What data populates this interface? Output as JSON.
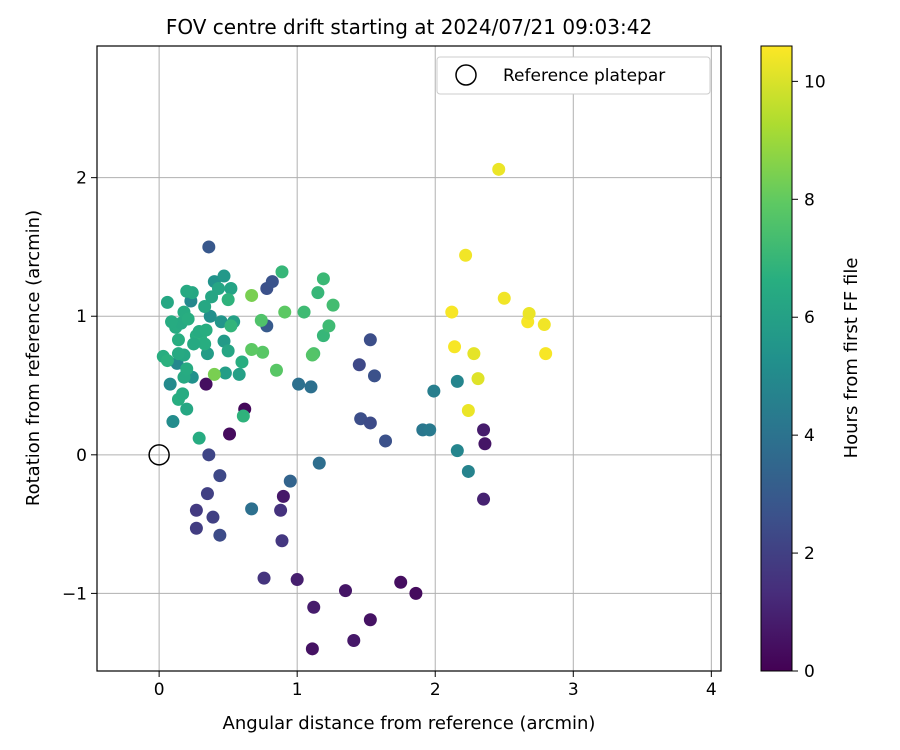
{
  "chart_data": {
    "type": "scatter",
    "title": "FOV centre drift starting at 2024/07/21 09:03:42",
    "xlabel": "Angular distance from reference (arcmin)",
    "ylabel": "Rotation from reference (arcmin)",
    "xlim": [
      -0.45,
      4.07
    ],
    "ylim": [
      -1.56,
      2.95
    ],
    "xticks": [
      0,
      1,
      2,
      3,
      4
    ],
    "yticks": [
      -1,
      0,
      1,
      2
    ],
    "ytick_labels": [
      "−1",
      "0",
      "1",
      "2"
    ],
    "grid": true,
    "legend": {
      "location": "top-right",
      "entries": [
        "Reference platepar"
      ]
    },
    "reference_point": {
      "x": 0.0,
      "y": 0.0,
      "label": "Reference platepar"
    },
    "colorbar": {
      "label": "Hours from first FF file",
      "range": [
        0,
        10.6
      ],
      "ticks": [
        0,
        2,
        4,
        6,
        8,
        10
      ],
      "colormap": "viridis"
    },
    "series": [
      {
        "marker": "filled-circle",
        "columns": [
          "x",
          "y",
          "hours"
        ],
        "points": [
          [
            0.34,
            0.51,
            0.4
          ],
          [
            0.62,
            0.33,
            0.2
          ],
          [
            0.51,
            0.15,
            0.3
          ],
          [
            0.9,
            -0.3,
            0.7
          ],
          [
            1.12,
            -1.1,
            0.8
          ],
          [
            1.11,
            -1.4,
            0.5
          ],
          [
            1.35,
            -0.98,
            0.6
          ],
          [
            1.41,
            -1.34,
            0.7
          ],
          [
            1.53,
            -1.19,
            0.5
          ],
          [
            1.75,
            -0.92,
            0.4
          ],
          [
            1.86,
            -1.0,
            0.3
          ],
          [
            1.0,
            -0.9,
            0.9
          ],
          [
            2.35,
            0.18,
            0.8
          ],
          [
            2.36,
            0.08,
            0.6
          ],
          [
            2.35,
            -0.32,
            1.0
          ],
          [
            0.76,
            -0.89,
            1.6
          ],
          [
            0.88,
            -0.4,
            1.5
          ],
          [
            0.89,
            -0.62,
            1.7
          ],
          [
            0.27,
            -0.4,
            1.8
          ],
          [
            0.27,
            -0.53,
            1.9
          ],
          [
            0.35,
            -0.28,
            2.0
          ],
          [
            0.39,
            -0.45,
            2.0
          ],
          [
            0.36,
            0.0,
            2.2
          ],
          [
            0.44,
            -0.15,
            2.3
          ],
          [
            0.44,
            -0.58,
            2.4
          ],
          [
            1.45,
            0.65,
            2.3
          ],
          [
            1.46,
            0.26,
            2.5
          ],
          [
            1.53,
            0.83,
            2.5
          ],
          [
            1.53,
            0.23,
            2.4
          ],
          [
            1.56,
            0.57,
            2.6
          ],
          [
            1.64,
            0.1,
            2.6
          ],
          [
            0.78,
            1.2,
            2.6
          ],
          [
            0.82,
            1.25,
            2.7
          ],
          [
            0.36,
            1.5,
            2.9
          ],
          [
            0.78,
            0.93,
            3.0
          ],
          [
            0.95,
            -0.19,
            3.4
          ],
          [
            1.16,
            -0.06,
            3.8
          ],
          [
            0.67,
            -0.39,
            3.9
          ],
          [
            1.01,
            0.51,
            3.9
          ],
          [
            1.1,
            0.49,
            3.9
          ],
          [
            1.91,
            0.18,
            4.2
          ],
          [
            1.96,
            0.18,
            4.3
          ],
          [
            1.99,
            0.46,
            4.5
          ],
          [
            2.16,
            0.53,
            4.8
          ],
          [
            2.16,
            0.03,
            4.8
          ],
          [
            2.24,
            -0.12,
            4.7
          ],
          [
            0.23,
            1.11,
            4.9
          ],
          [
            0.13,
            0.66,
            4.9
          ],
          [
            0.08,
            0.51,
            5.0
          ],
          [
            0.1,
            0.24,
            5.1
          ],
          [
            0.19,
            0.57,
            5.3
          ],
          [
            0.37,
            1.0,
            5.2
          ],
          [
            0.24,
            0.56,
            5.3
          ],
          [
            0.4,
            1.25,
            5.4
          ],
          [
            0.45,
            0.96,
            5.5
          ],
          [
            0.47,
            1.29,
            5.6
          ],
          [
            0.47,
            0.82,
            5.7
          ],
          [
            0.35,
            0.73,
            5.8
          ],
          [
            0.48,
            0.59,
            5.9
          ],
          [
            0.58,
            0.58,
            6.0
          ],
          [
            0.54,
            0.96,
            6.0
          ],
          [
            0.52,
            1.2,
            6.1
          ],
          [
            0.5,
            0.75,
            6.2
          ],
          [
            0.43,
            1.2,
            6.2
          ],
          [
            0.38,
            1.14,
            6.2
          ],
          [
            0.33,
            1.07,
            6.3
          ],
          [
            0.24,
            1.17,
            6.3
          ],
          [
            0.2,
            1.18,
            6.4
          ],
          [
            0.2,
            0.33,
            6.3
          ],
          [
            0.29,
            0.12,
            6.5
          ],
          [
            0.06,
            1.1,
            6.3
          ],
          [
            0.12,
            0.92,
            6.5
          ],
          [
            0.14,
            0.83,
            6.6
          ],
          [
            0.16,
            0.95,
            6.4
          ],
          [
            0.18,
            1.03,
            6.5
          ],
          [
            0.21,
            0.98,
            6.6
          ],
          [
            0.27,
            0.86,
            6.6
          ],
          [
            0.3,
            0.84,
            6.7
          ],
          [
            0.33,
            0.8,
            6.6
          ],
          [
            0.14,
            0.4,
            6.6
          ],
          [
            0.17,
            0.44,
            6.5
          ],
          [
            0.18,
            0.56,
            6.4
          ],
          [
            0.18,
            0.72,
            6.3
          ],
          [
            0.14,
            0.73,
            6.4
          ],
          [
            0.2,
            0.62,
            6.5
          ],
          [
            0.25,
            0.8,
            6.4
          ],
          [
            0.29,
            0.89,
            6.5
          ],
          [
            0.34,
            0.9,
            6.6
          ],
          [
            0.03,
            0.71,
            6.6
          ],
          [
            0.06,
            0.68,
            6.7
          ],
          [
            0.09,
            0.96,
            6.5
          ],
          [
            0.6,
            0.67,
            6.6
          ],
          [
            0.61,
            0.28,
            6.8
          ],
          [
            0.5,
            1.12,
            6.8
          ],
          [
            0.52,
            0.93,
            6.9
          ],
          [
            0.89,
            1.32,
            7.0
          ],
          [
            1.15,
            1.17,
            7.0
          ],
          [
            1.19,
            0.86,
            7.0
          ],
          [
            1.19,
            1.27,
            7.1
          ],
          [
            1.23,
            0.93,
            7.2
          ],
          [
            1.26,
            1.08,
            7.3
          ],
          [
            1.05,
            1.03,
            7.2
          ],
          [
            1.12,
            0.73,
            7.5
          ],
          [
            0.74,
            0.97,
            7.6
          ],
          [
            0.75,
            0.74,
            7.8
          ],
          [
            0.85,
            0.61,
            7.8
          ],
          [
            0.91,
            1.03,
            7.9
          ],
          [
            0.67,
            0.76,
            7.9
          ],
          [
            0.4,
            0.58,
            8.4
          ],
          [
            0.67,
            1.15,
            8.4
          ],
          [
            1.11,
            0.72,
            7.7
          ],
          [
            2.46,
            2.06,
            10.3
          ],
          [
            2.22,
            1.44,
            10.4
          ],
          [
            2.12,
            1.03,
            10.5
          ],
          [
            2.14,
            0.78,
            10.5
          ],
          [
            2.5,
            1.13,
            10.4
          ],
          [
            2.67,
            0.96,
            10.5
          ],
          [
            2.68,
            1.02,
            10.3
          ],
          [
            2.79,
            0.94,
            10.4
          ],
          [
            2.8,
            0.73,
            10.5
          ],
          [
            2.28,
            0.73,
            10.2
          ],
          [
            2.31,
            0.55,
            10.1
          ],
          [
            2.24,
            0.32,
            10.3
          ]
        ]
      }
    ]
  }
}
